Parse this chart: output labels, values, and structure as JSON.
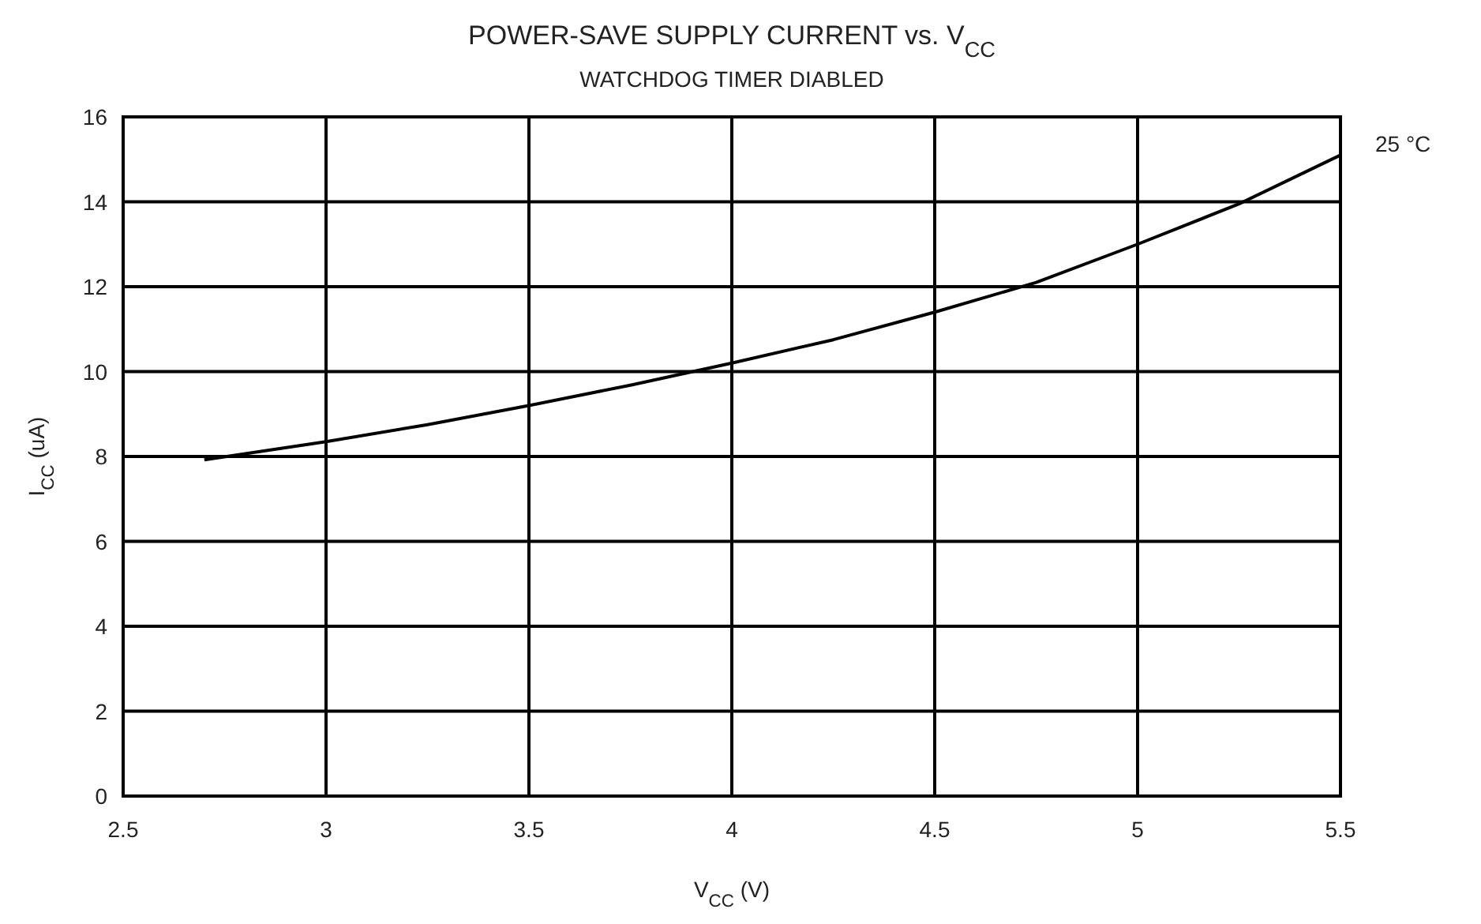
{
  "chart_data": {
    "type": "line",
    "title": "POWER-SAVE SUPPLY CURRENT vs. V$_{CC}$",
    "subtitle": "WATCHDOG TIMER DIABLED",
    "xlabel": "V$_{CC}$ (V)",
    "ylabel": "I$_{CC}$ (uA)",
    "x": [
      2.7,
      3,
      3.25,
      3.5,
      3.75,
      4,
      4.25,
      4.5,
      4.75,
      5,
      5.25,
      5.5
    ],
    "series": [
      {
        "name": "25 °C",
        "color": "#000000",
        "values": [
          7.92,
          8.35,
          8.75,
          9.2,
          9.68,
          10.2,
          10.75,
          11.4,
          12.1,
          13.0,
          13.95,
          15.1
        ]
      }
    ],
    "xlim": [
      2.5,
      5.5
    ],
    "xticks": [
      2.5,
      3,
      3.5,
      4,
      4.5,
      5,
      5.5
    ],
    "ylim": [
      0,
      16
    ],
    "yticks": [
      0,
      2,
      4,
      6,
      8,
      10,
      12,
      14,
      16
    ],
    "grid": true,
    "marker": "none",
    "line_style": "solid"
  }
}
